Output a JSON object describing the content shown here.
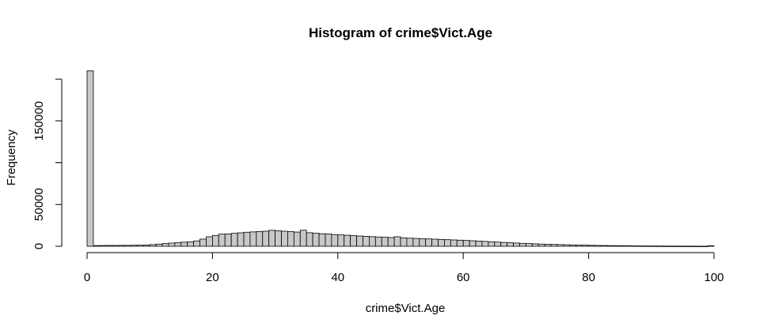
{
  "chart_data": {
    "type": "bar",
    "title": "Histogram of crime$Vict.Age",
    "xlabel": "crime$Vict.Age",
    "ylabel": "Frequency",
    "xlim": [
      0,
      100
    ],
    "ylim": [
      0,
      200000
    ],
    "bin_width": 1,
    "x_ticks": [
      0,
      20,
      40,
      60,
      80,
      100
    ],
    "y_ticks": [
      0,
      50000,
      150000
    ],
    "bar_fill": "#c8c8c8",
    "bar_stroke": "#000000",
    "values": [
      210000,
      800,
      900,
      1000,
      1000,
      1100,
      1100,
      1200,
      1300,
      1500,
      2000,
      2600,
      3200,
      3800,
      4300,
      4900,
      5200,
      6400,
      8600,
      11400,
      13000,
      14500,
      14800,
      15500,
      16100,
      16800,
      17200,
      17600,
      18000,
      19100,
      18600,
      18000,
      17500,
      17000,
      19200,
      16200,
      15600,
      15000,
      14600,
      14000,
      13600,
      13200,
      12700,
      12300,
      11900,
      11500,
      11100,
      10800,
      10400,
      11400,
      10000,
      9700,
      9400,
      9100,
      8800,
      8500,
      8200,
      7900,
      7600,
      7300,
      7000,
      6600,
      6200,
      5800,
      5400,
      5000,
      4600,
      4200,
      3800,
      3500,
      3200,
      2900,
      2600,
      2400,
      2200,
      2000,
      1800,
      1600,
      1450,
      1300,
      1150,
      1000,
      900,
      800,
      700,
      620,
      550,
      480,
      420,
      360,
      310,
      270,
      230,
      200,
      170,
      140,
      120,
      100,
      90,
      600
    ]
  }
}
